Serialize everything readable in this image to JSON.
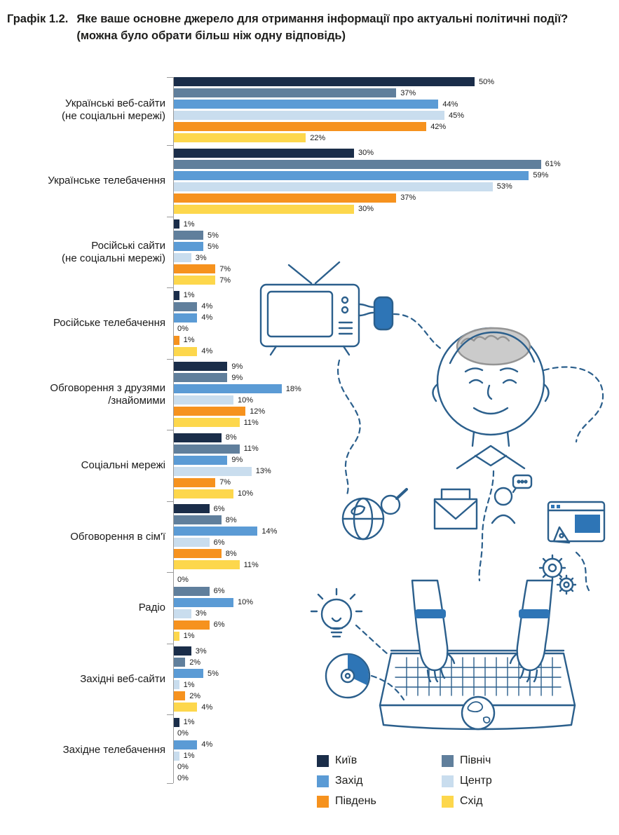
{
  "title": {
    "prefix": "Графік 1.2.",
    "question": "Яке ваше основне джерело для отримання інформації про актуальні політичні події?",
    "note": "(можна було обрати більш ніж одну відповідь)"
  },
  "chart_data": {
    "type": "bar",
    "orientation": "horizontal",
    "value_unit": "%",
    "xlim": [
      0,
      65
    ],
    "grid": false,
    "legend_position": "bottom-right",
    "categories": [
      "Українські веб-сайти\n(не соціальні мережі)",
      "Українське телебачення",
      "Російські сайти\n(не соціальні мережі)",
      "Російське телебачення",
      "Обговорення з друзями\n/знайомими",
      "Соціальні мережі",
      "Обговорення в сім'ї",
      "Радіо",
      "Західні веб-сайти",
      "Західне телебачення"
    ],
    "series": [
      {
        "name": "Київ",
        "color": "#1a2d49",
        "values": [
          50,
          30,
          1,
          1,
          9,
          8,
          6,
          0,
          3,
          1
        ]
      },
      {
        "name": "Північ",
        "color": "#607f9c",
        "values": [
          37,
          61,
          5,
          4,
          9,
          11,
          8,
          6,
          2,
          0
        ]
      },
      {
        "name": "Захід",
        "color": "#5b9bd5",
        "values": [
          44,
          59,
          5,
          4,
          18,
          9,
          14,
          10,
          5,
          4
        ]
      },
      {
        "name": "Центр",
        "color": "#c9ddee",
        "values": [
          45,
          53,
          3,
          0,
          10,
          13,
          6,
          3,
          1,
          1
        ]
      },
      {
        "name": "Південь",
        "color": "#f6921e",
        "values": [
          42,
          37,
          7,
          1,
          12,
          7,
          8,
          6,
          2,
          0
        ]
      },
      {
        "name": "Схід",
        "color": "#fdd74c",
        "values": [
          22,
          30,
          7,
          4,
          11,
          10,
          11,
          1,
          4,
          0
        ]
      }
    ],
    "legend_order": [
      [
        0,
        2,
        4
      ],
      [
        1,
        3,
        5
      ]
    ]
  },
  "illustration": {
    "icons": [
      "tv-icon",
      "plug-icon",
      "head-brain-icon",
      "globe-search-icon",
      "mail-icon",
      "chat-person-icon",
      "browser-icon",
      "gears-icon",
      "lightbulb-icon",
      "cd-icon",
      "laptop-typing-icon"
    ],
    "ink_color": "#2b5f8c",
    "accent_color": "#2e75b6"
  }
}
